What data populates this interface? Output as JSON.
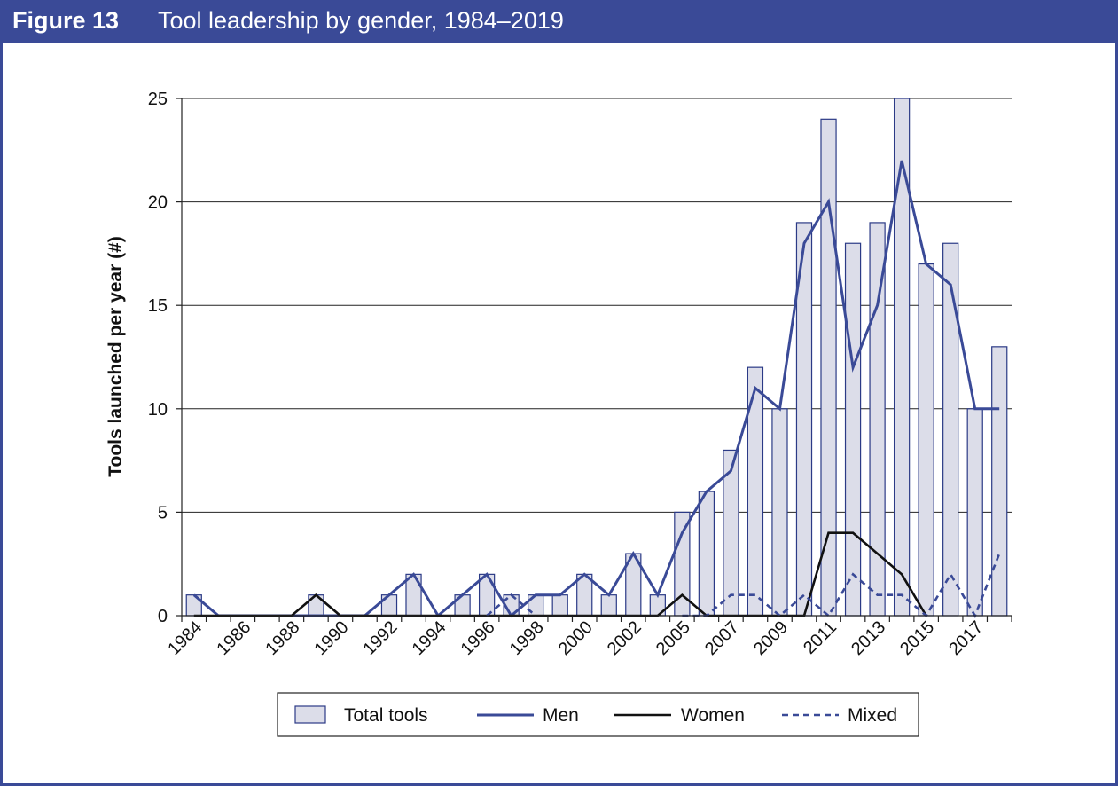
{
  "header": {
    "figure_label": "Figure 13",
    "title": "Tool leadership by gender, 1984–2019"
  },
  "colors": {
    "header_bg": "#3a4a97",
    "bar_fill": "#dcdde9",
    "men": "#3a4a97",
    "women": "#111111",
    "mixed": "#3a4a97"
  },
  "chart_data": {
    "type": "bar",
    "title": "Tool leadership by gender, 1984–2019",
    "ylabel": "Tools launched per year (#)",
    "xlabel": "",
    "ylim": [
      0,
      25
    ],
    "yticks": [
      0,
      5,
      10,
      15,
      20,
      25
    ],
    "categories": [
      "1984",
      "1985",
      "1986",
      "1987",
      "1988",
      "1989",
      "1990",
      "1991",
      "1992",
      "1993",
      "1994",
      "1995",
      "1996",
      "1997",
      "1998",
      "1999",
      "2000",
      "2001",
      "2002",
      "2003",
      "2005",
      "2006",
      "2007",
      "2008",
      "2009",
      "2010",
      "2011",
      "2012",
      "2013",
      "2014",
      "2015",
      "2016",
      "2017",
      "2018"
    ],
    "xtick_labels": [
      "1984",
      "",
      "1986",
      "",
      "1988",
      "",
      "1990",
      "",
      "1992",
      "",
      "1994",
      "",
      "1996",
      "",
      "1998",
      "",
      "2000",
      "",
      "2002",
      "",
      "2005",
      "",
      "2007",
      "",
      "2009",
      "",
      "2011",
      "",
      "2013",
      "",
      "2015",
      "",
      "2017",
      ""
    ],
    "series": [
      {
        "name": "Total tools",
        "type": "bar",
        "values": [
          1,
          0,
          0,
          0,
          0,
          1,
          0,
          0,
          1,
          2,
          0,
          1,
          2,
          1,
          1,
          1,
          2,
          1,
          3,
          1,
          5,
          6,
          8,
          12,
          10,
          19,
          24,
          18,
          19,
          25,
          17,
          18,
          10,
          13
        ]
      },
      {
        "name": "Men",
        "type": "line",
        "style": "solid",
        "values": [
          1,
          0,
          0,
          0,
          0,
          0,
          0,
          0,
          1,
          2,
          0,
          1,
          2,
          0,
          1,
          1,
          2,
          1,
          3,
          1,
          4,
          6,
          7,
          11,
          10,
          18,
          20,
          12,
          15,
          22,
          17,
          16,
          10,
          10
        ]
      },
      {
        "name": "Women",
        "type": "line",
        "style": "solid",
        "values": [
          0,
          0,
          0,
          0,
          0,
          1,
          0,
          0,
          0,
          0,
          0,
          0,
          0,
          0,
          0,
          0,
          0,
          0,
          0,
          0,
          1,
          0,
          0,
          0,
          0,
          0,
          4,
          4,
          3,
          2,
          0,
          null,
          null,
          null
        ]
      },
      {
        "name": "Mixed",
        "type": "line",
        "style": "dashed",
        "values": [
          null,
          null,
          null,
          null,
          null,
          null,
          null,
          null,
          null,
          null,
          null,
          null,
          0,
          1,
          0,
          null,
          null,
          null,
          null,
          null,
          0,
          0,
          1,
          1,
          0,
          1,
          0,
          2,
          1,
          1,
          0,
          2,
          0,
          3
        ]
      }
    ],
    "legend": {
      "position": "bottom",
      "entries": [
        "Total tools",
        "Men",
        "Women",
        "Mixed"
      ]
    },
    "grid": {
      "y": true,
      "x": false
    }
  }
}
